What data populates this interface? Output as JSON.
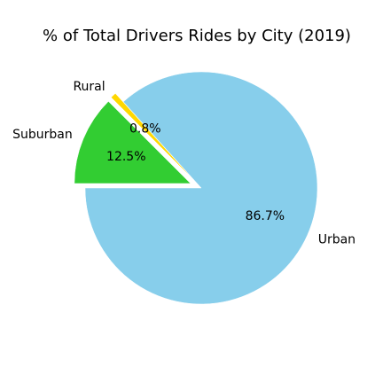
{
  "chart_data": {
    "type": "pie",
    "title": "% of Total Drivers Rides by City (2019)",
    "slices": [
      {
        "label": "Urban",
        "value": 86.7,
        "pct_label": "86.7%",
        "color": "#87ceeb",
        "exploded": false
      },
      {
        "label": "Rural",
        "value": 0.8,
        "pct_label": "0.8%",
        "color": "#ffd700",
        "exploded": true
      },
      {
        "label": "Suburban",
        "value": 12.5,
        "pct_label": "12.5%",
        "color": "#32cd32",
        "exploded": true
      }
    ],
    "start_angle_deg": 180,
    "direction": "counterclockwise"
  }
}
